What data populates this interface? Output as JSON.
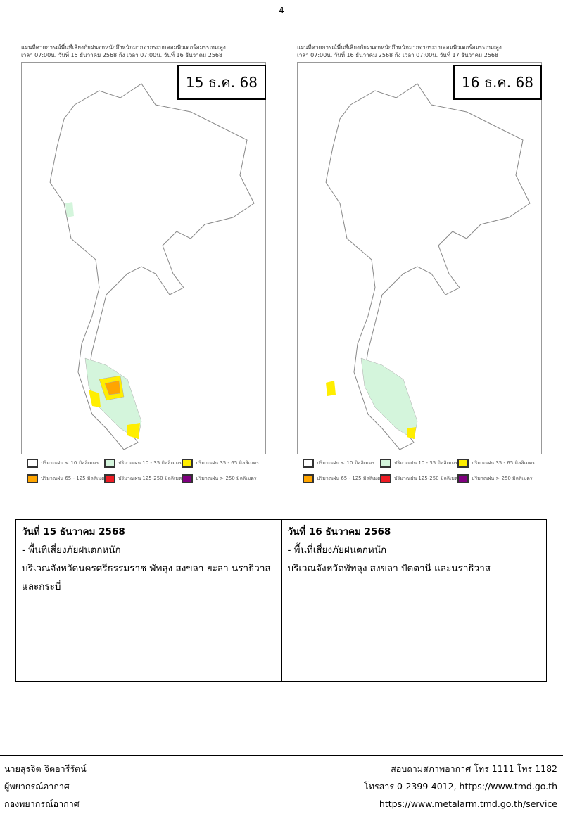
{
  "page_number": "-4-",
  "maps": [
    {
      "title": "แผนที่คาดการณ์พื้นที่เสี่ยงภัยฝนตกหนักถึงหนักมากจากระบบคอมพิวเตอร์สมรรถนะสูง",
      "period": "เวลา 07:00น. วันที่  15  ธันวาคม  2568 ถึง เวลา 07:00น. วันที่  16  ธันวาคม  2568",
      "date_label": "15 ธ.ค. 68"
    },
    {
      "title": "แผนที่คาดการณ์พื้นที่เสี่ยงภัยฝนตกหนักถึงหนักมากจากระบบคอมพิวเตอร์สมรรถนะสูง",
      "period": "เวลา 07:00น. วันที่  16  ธันวาคม  2568 ถึง เวลา 07:00น. วันที่  17  ธันวาคม  2568",
      "date_label": "16 ธ.ค. 68"
    }
  ],
  "legend": [
    {
      "label": "ปริมาณฝน < 10 มิลลิเมตร",
      "color": "#ffffff"
    },
    {
      "label": "ปริมาณฝน 10 - 35 มิลลิเมตร",
      "color": "#d4f5dc"
    },
    {
      "label": "ปริมาณฝน 35 - 65 มิลลิเมตร",
      "color": "#ffee00"
    },
    {
      "label": "ปริมาณฝน 65 - 125 มิลลิเมตร",
      "color": "#ffa500"
    },
    {
      "label": "ปริมาณฝน 125-250 มิลลิเมตร",
      "color": "#ee1c24"
    },
    {
      "label": "ปริมาณฝน > 250 มิลลิเมตร",
      "color": "#800080"
    }
  ],
  "days": [
    {
      "heading": "วันที่ 15 ธันวาคม 2568",
      "item": "- พื้นที่เสี่ยงภัยฝนตกหนัก",
      "areas": "บริเวณจังหวัดนครศรีธรรมราช พัทลุง สงขลา ยะลา นราธิวาส และกระบี่"
    },
    {
      "heading": "วันที่ 16 ธันวาคม 2568",
      "item": "- พื้นที่เสี่ยงภัยฝนตกหนัก",
      "areas": "บริเวณจังหวัดพัทลุง สงขลา ปัตตานี และนราธิวาส"
    }
  ],
  "footer": {
    "left": [
      "นายสุรจิต จิตอารีรัตน์",
      "ผู้พยากรณ์อากาศ",
      "กองพยากรณ์อากาศ"
    ],
    "right": [
      "สอบถามสภาพอากาศ โทร 1111 โทร 1182",
      "โทรสาร 0-2399-4012, https://www.tmd.go.th",
      "https://www.metalarm.tmd.go.th/service"
    ]
  }
}
